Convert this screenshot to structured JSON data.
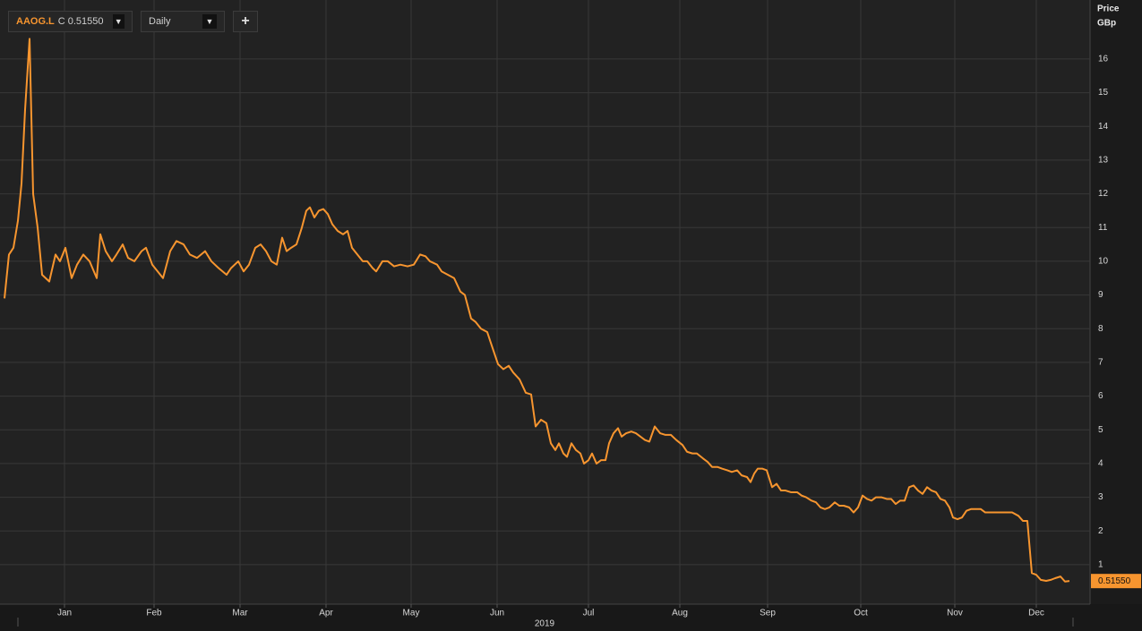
{
  "toolbar": {
    "ric": "AAOG.L",
    "price_type": "C",
    "interval": "Daily"
  },
  "chart_data": {
    "type": "line",
    "color": "#f7952f",
    "axis_title": "Price",
    "axis_unit": "GBp",
    "year_label": "2019",
    "last_label": {
      "value": 0.5155,
      "label": "0.51550"
    },
    "xlim": [
      0,
      1217
    ],
    "ylim": [
      -0.17,
      17.75
    ],
    "xticks": [
      {
        "value": 72,
        "label": "Jan"
      },
      {
        "value": 172,
        "label": "Feb"
      },
      {
        "value": 268,
        "label": "Mar"
      },
      {
        "value": 364,
        "label": "Apr"
      },
      {
        "value": 459,
        "label": "May"
      },
      {
        "value": 555,
        "label": "Jun"
      },
      {
        "value": 657,
        "label": "Jul"
      },
      {
        "value": 759,
        "label": "Aug"
      },
      {
        "value": 857,
        "label": "Sep"
      },
      {
        "value": 961,
        "label": "Oct"
      },
      {
        "value": 1066,
        "label": "Nov"
      },
      {
        "value": 1157,
        "label": "Dec"
      }
    ],
    "yticks": [
      1,
      2,
      3,
      4,
      5,
      6,
      7,
      8,
      9,
      10,
      11,
      12,
      13,
      14,
      15,
      16
    ],
    "grid": true,
    "x": [
      5,
      10,
      15,
      20,
      24,
      28,
      33,
      37,
      42,
      47,
      55,
      62,
      67,
      73,
      80,
      86,
      93,
      100,
      108,
      112,
      118,
      125,
      130,
      137,
      143,
      150,
      158,
      163,
      170,
      176,
      182,
      190,
      197,
      205,
      212,
      220,
      229,
      236,
      244,
      253,
      258,
      266,
      272,
      278,
      285,
      291,
      297,
      303,
      309,
      315,
      320,
      325,
      331,
      337,
      342,
      346,
      351,
      356,
      361,
      366,
      371,
      377,
      383,
      388,
      393,
      399,
      405,
      410,
      416,
      420,
      427,
      433,
      440,
      447,
      455,
      462,
      469,
      475,
      480,
      488,
      493,
      500,
      507,
      514,
      519,
      526,
      531,
      537,
      544,
      549,
      556,
      562,
      568,
      573,
      580,
      587,
      593,
      598,
      604,
      610,
      615,
      620,
      624,
      629,
      633,
      638,
      643,
      648,
      652,
      657,
      661,
      666,
      671,
      676,
      680,
      685,
      690,
      694,
      699,
      705,
      710,
      715,
      720,
      725,
      731,
      737,
      743,
      749,
      755,
      762,
      767,
      773,
      778,
      785,
      790,
      795,
      801,
      806,
      812,
      817,
      823,
      828,
      834,
      838,
      842,
      846,
      851,
      856,
      862,
      867,
      872,
      877,
      883,
      890,
      895,
      900,
      906,
      911,
      916,
      921,
      926,
      932,
      937,
      942,
      948,
      953,
      958,
      963,
      968,
      973,
      978,
      984,
      990,
      995,
      1000,
      1005,
      1010,
      1015,
      1020,
      1025,
      1030,
      1035,
      1040,
      1045,
      1050,
      1055,
      1060,
      1064,
      1069,
      1074,
      1079,
      1084,
      1089,
      1095,
      1100,
      1110,
      1120,
      1130,
      1137,
      1142,
      1147,
      1152,
      1157,
      1162,
      1168,
      1173,
      1178,
      1184,
      1189,
      1194
    ],
    "values": [
      8.9,
      10.2,
      10.4,
      11.2,
      12.3,
      14.5,
      16.6,
      12.0,
      11.0,
      9.6,
      9.4,
      10.2,
      10.0,
      10.4,
      9.5,
      9.9,
      10.2,
      10.0,
      9.5,
      10.8,
      10.3,
      10.0,
      10.2,
      10.5,
      10.1,
      10.0,
      10.3,
      10.4,
      9.9,
      9.7,
      9.5,
      10.3,
      10.6,
      10.5,
      10.2,
      10.1,
      10.3,
      10.0,
      9.8,
      9.6,
      9.8,
      10.0,
      9.7,
      9.9,
      10.4,
      10.5,
      10.3,
      10.0,
      9.9,
      10.7,
      10.3,
      10.4,
      10.5,
      11.0,
      11.5,
      11.6,
      11.3,
      11.5,
      11.55,
      11.4,
      11.1,
      10.9,
      10.8,
      10.9,
      10.4,
      10.2,
      10.0,
      10.0,
      9.8,
      9.7,
      10.0,
      10.0,
      9.85,
      9.9,
      9.85,
      9.9,
      10.2,
      10.15,
      10.0,
      9.9,
      9.7,
      9.6,
      9.5,
      9.1,
      9.0,
      8.3,
      8.2,
      8.0,
      7.9,
      7.5,
      6.95,
      6.8,
      6.9,
      6.7,
      6.5,
      6.1,
      6.05,
      5.1,
      5.3,
      5.2,
      4.6,
      4.4,
      4.6,
      4.3,
      4.2,
      4.6,
      4.4,
      4.3,
      4.0,
      4.1,
      4.3,
      4.0,
      4.1,
      4.1,
      4.6,
      4.9,
      5.05,
      4.8,
      4.9,
      4.95,
      4.9,
      4.8,
      4.7,
      4.65,
      5.1,
      4.9,
      4.85,
      4.85,
      4.7,
      4.55,
      4.35,
      4.3,
      4.3,
      4.15,
      4.05,
      3.9,
      3.9,
      3.85,
      3.8,
      3.75,
      3.8,
      3.65,
      3.6,
      3.45,
      3.7,
      3.85,
      3.85,
      3.8,
      3.3,
      3.4,
      3.2,
      3.2,
      3.15,
      3.15,
      3.05,
      3.0,
      2.9,
      2.85,
      2.7,
      2.65,
      2.7,
      2.85,
      2.75,
      2.75,
      2.7,
      2.55,
      2.7,
      3.05,
      2.95,
      2.9,
      3.0,
      3.0,
      2.95,
      2.95,
      2.8,
      2.9,
      2.9,
      3.3,
      3.35,
      3.2,
      3.1,
      3.3,
      3.2,
      3.15,
      2.95,
      2.9,
      2.7,
      2.4,
      2.35,
      2.4,
      2.6,
      2.65,
      2.65,
      2.65,
      2.55,
      2.55,
      2.55,
      2.55,
      2.45,
      2.3,
      2.3,
      0.75,
      0.7,
      0.55,
      0.52,
      0.55,
      0.6,
      0.65,
      0.5,
      0.5155
    ]
  }
}
